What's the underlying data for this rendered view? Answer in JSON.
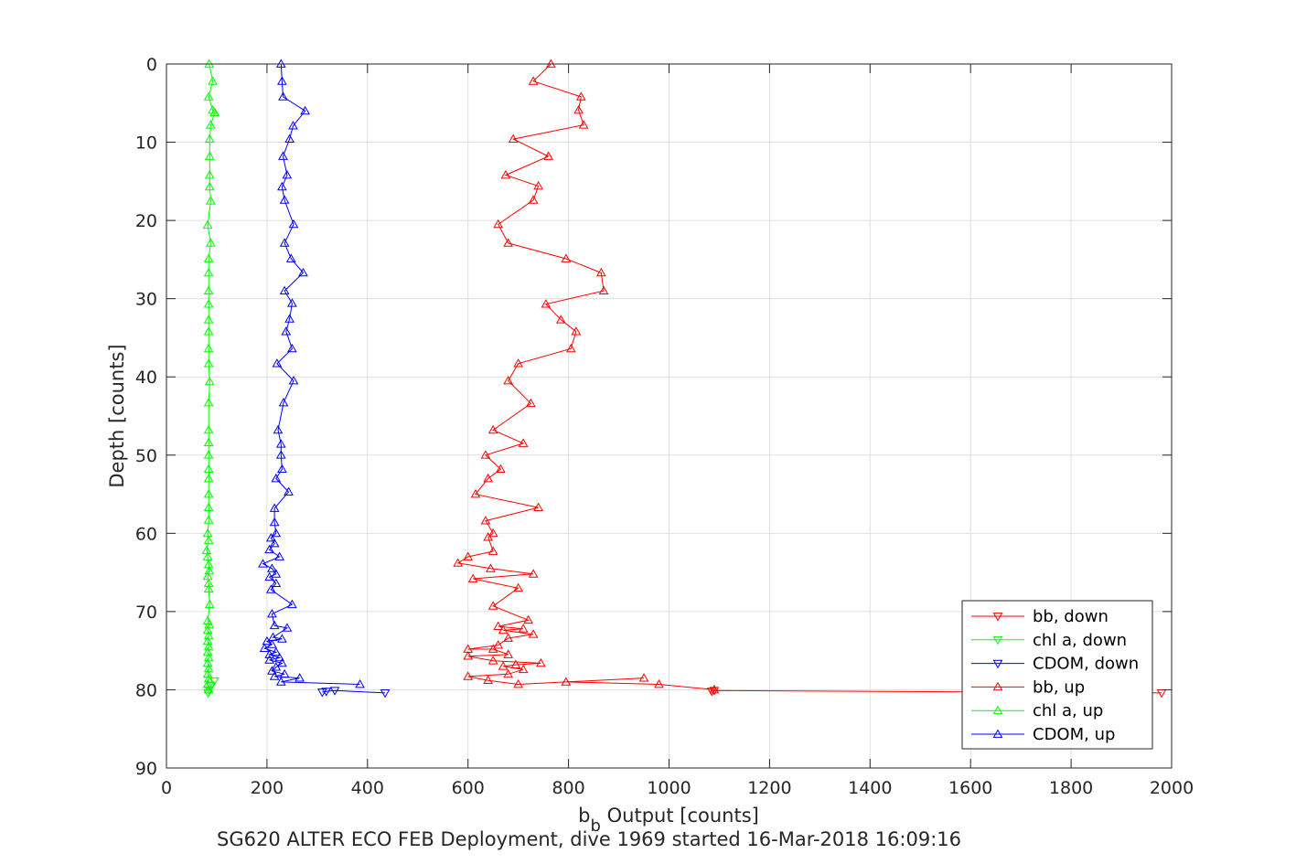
{
  "chart_data": {
    "type": "line",
    "xlabel": "b",
    "xlabel_sub": "b",
    "xlabel_rest": " Output [counts]",
    "ylabel": "Depth [counts]",
    "caption": "SG620 ALTER ECO FEB Deployment, dive 1969 started 16-Mar-2018 16:09:16",
    "xlim": [
      0,
      2000
    ],
    "ylim": [
      0,
      90
    ],
    "y_reversed": true,
    "grid": true,
    "legend_position": "bottom-right",
    "x_ticks": [
      "0",
      "200",
      "400",
      "600",
      "800",
      "1000",
      "1200",
      "1400",
      "1600",
      "1800",
      "2000"
    ],
    "y_ticks": [
      "0",
      "10",
      "20",
      "30",
      "40",
      "50",
      "60",
      "70",
      "80",
      "90"
    ],
    "series": [
      {
        "name": "bb, down",
        "color": "#ff0000",
        "marker": "triangle-down",
        "points": [
          [
            1980,
            80.4
          ],
          [
            1090,
            80.1
          ],
          [
            1085,
            80.2
          ]
        ]
      },
      {
        "name": "chl a, down",
        "color": "#00ff00",
        "marker": "triangle-down",
        "points": [
          [
            95,
            78.9
          ],
          [
            88,
            79.5
          ],
          [
            85,
            80.0
          ],
          [
            83,
            80.4
          ]
        ]
      },
      {
        "name": "CDOM, down",
        "color": "#0000ff",
        "marker": "triangle-down",
        "points": [
          [
            435,
            80.4
          ],
          [
            335,
            80.1
          ],
          [
            318,
            80.2
          ],
          [
            310,
            80.3
          ]
        ]
      },
      {
        "name": "bb, up",
        "color": "#ff0000",
        "marker": "triangle-up",
        "points": [
          [
            1090,
            80.0
          ],
          [
            980,
            79.3
          ],
          [
            795,
            79.0
          ],
          [
            950,
            78.5
          ],
          [
            700,
            79.3
          ],
          [
            640,
            78.8
          ],
          [
            600,
            78.3
          ],
          [
            680,
            78.0
          ],
          [
            710,
            77.4
          ],
          [
            670,
            77.0
          ],
          [
            695,
            76.8
          ],
          [
            745,
            76.6
          ],
          [
            650,
            76.3
          ],
          [
            600,
            75.7
          ],
          [
            680,
            75.5
          ],
          [
            650,
            74.8
          ],
          [
            600,
            74.8
          ],
          [
            660,
            74.3
          ],
          [
            680,
            73.4
          ],
          [
            730,
            72.9
          ],
          [
            670,
            72.4
          ],
          [
            710,
            72.2
          ],
          [
            660,
            71.9
          ],
          [
            720,
            71.1
          ],
          [
            650,
            69.3
          ],
          [
            700,
            67.0
          ],
          [
            610,
            65.8
          ],
          [
            730,
            65.2
          ],
          [
            645,
            64.5
          ],
          [
            580,
            63.8
          ],
          [
            600,
            63.0
          ],
          [
            650,
            62.3
          ],
          [
            640,
            60.5
          ],
          [
            650,
            60.0
          ],
          [
            635,
            58.4
          ],
          [
            740,
            56.7
          ],
          [
            615,
            55.0
          ],
          [
            640,
            53.0
          ],
          [
            665,
            51.8
          ],
          [
            635,
            50.0
          ],
          [
            710,
            48.5
          ],
          [
            650,
            46.8
          ],
          [
            725,
            43.4
          ],
          [
            680,
            40.5
          ],
          [
            700,
            38.3
          ],
          [
            805,
            36.4
          ],
          [
            815,
            34.2
          ],
          [
            785,
            32.7
          ],
          [
            755,
            30.7
          ],
          [
            870,
            29.0
          ],
          [
            865,
            26.7
          ],
          [
            795,
            24.9
          ],
          [
            680,
            22.9
          ],
          [
            660,
            20.5
          ],
          [
            730,
            17.4
          ],
          [
            740,
            15.6
          ],
          [
            675,
            14.2
          ],
          [
            760,
            11.8
          ],
          [
            690,
            9.6
          ],
          [
            830,
            7.8
          ],
          [
            820,
            5.9
          ],
          [
            825,
            4.2
          ],
          [
            730,
            2.2
          ],
          [
            765,
            0.0
          ]
        ]
      },
      {
        "name": "chl a, up",
        "color": "#00ff00",
        "marker": "triangle-up",
        "points": [
          [
            84,
            80.0
          ],
          [
            82,
            79.3
          ],
          [
            84,
            78.6
          ],
          [
            82,
            78.0
          ],
          [
            84,
            77.3
          ],
          [
            82,
            76.6
          ],
          [
            84,
            75.9
          ],
          [
            82,
            75.2
          ],
          [
            84,
            74.5
          ],
          [
            82,
            73.8
          ],
          [
            84,
            73.1
          ],
          [
            82,
            72.4
          ],
          [
            85,
            71.7
          ],
          [
            82,
            71.2
          ],
          [
            86,
            69.1
          ],
          [
            84,
            67.1
          ],
          [
            84,
            66.4
          ],
          [
            82,
            65.5
          ],
          [
            85,
            64.8
          ],
          [
            84,
            64.0
          ],
          [
            82,
            63.0
          ],
          [
            80,
            62.2
          ],
          [
            84,
            60.9
          ],
          [
            82,
            60.0
          ],
          [
            84,
            58.3
          ],
          [
            84,
            56.7
          ],
          [
            84,
            55.0
          ],
          [
            84,
            53.0
          ],
          [
            84,
            51.8
          ],
          [
            84,
            50.0
          ],
          [
            84,
            48.4
          ],
          [
            84,
            46.8
          ],
          [
            84,
            43.3
          ],
          [
            86,
            40.6
          ],
          [
            84,
            38.3
          ],
          [
            84,
            36.4
          ],
          [
            84,
            34.2
          ],
          [
            84,
            32.7
          ],
          [
            84,
            30.7
          ],
          [
            84,
            29.0
          ],
          [
            84,
            26.7
          ],
          [
            84,
            24.9
          ],
          [
            88,
            22.9
          ],
          [
            82,
            20.6
          ],
          [
            88,
            17.5
          ],
          [
            86,
            15.7
          ],
          [
            86,
            14.2
          ],
          [
            86,
            11.8
          ],
          [
            86,
            9.6
          ],
          [
            88,
            7.8
          ],
          [
            96,
            6.2
          ],
          [
            92,
            5.9
          ],
          [
            84,
            4.2
          ],
          [
            92,
            2.2
          ],
          [
            85,
            0.0
          ]
        ]
      },
      {
        "name": "CDOM, up",
        "color": "#0000ff",
        "marker": "triangle-up",
        "points": [
          [
            385,
            79.3
          ],
          [
            228,
            79.0
          ],
          [
            265,
            78.5
          ],
          [
            215,
            78.3
          ],
          [
            235,
            78.0
          ],
          [
            210,
            77.6
          ],
          [
            218,
            77.1
          ],
          [
            230,
            76.6
          ],
          [
            205,
            76.2
          ],
          [
            225,
            75.9
          ],
          [
            205,
            75.5
          ],
          [
            218,
            75.2
          ],
          [
            195,
            74.7
          ],
          [
            210,
            74.2
          ],
          [
            200,
            73.8
          ],
          [
            230,
            73.5
          ],
          [
            212,
            73.3
          ],
          [
            240,
            72.1
          ],
          [
            215,
            71.8
          ],
          [
            210,
            70.3
          ],
          [
            250,
            69.1
          ],
          [
            208,
            67.2
          ],
          [
            218,
            66.4
          ],
          [
            205,
            65.6
          ],
          [
            218,
            65.2
          ],
          [
            210,
            64.5
          ],
          [
            192,
            63.9
          ],
          [
            225,
            63.0
          ],
          [
            205,
            62.1
          ],
          [
            215,
            61.3
          ],
          [
            208,
            60.6
          ],
          [
            218,
            60.0
          ],
          [
            215,
            58.6
          ],
          [
            215,
            56.8
          ],
          [
            243,
            54.7
          ],
          [
            218,
            53.0
          ],
          [
            230,
            51.8
          ],
          [
            228,
            50.0
          ],
          [
            228,
            48.6
          ],
          [
            222,
            46.8
          ],
          [
            233,
            43.3
          ],
          [
            253,
            40.5
          ],
          [
            220,
            38.3
          ],
          [
            250,
            36.4
          ],
          [
            238,
            34.2
          ],
          [
            245,
            32.6
          ],
          [
            250,
            30.6
          ],
          [
            235,
            29.0
          ],
          [
            272,
            26.7
          ],
          [
            248,
            24.9
          ],
          [
            235,
            22.9
          ],
          [
            253,
            20.5
          ],
          [
            235,
            17.4
          ],
          [
            230,
            15.7
          ],
          [
            240,
            14.2
          ],
          [
            232,
            11.8
          ],
          [
            245,
            9.6
          ],
          [
            252,
            7.9
          ],
          [
            276,
            6.0
          ],
          [
            232,
            4.2
          ],
          [
            230,
            2.2
          ],
          [
            228,
            0.0
          ]
        ]
      }
    ]
  }
}
